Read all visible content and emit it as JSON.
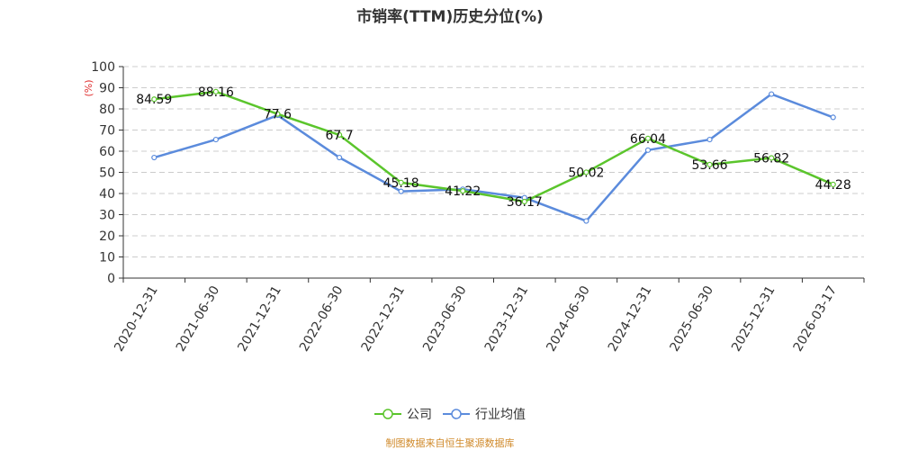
{
  "chart_data": {
    "type": "line",
    "title": "市销率(TTM)历史分位(%)",
    "ylabel": "(%)",
    "ylim": [
      0,
      100
    ],
    "yticks": [
      0,
      10,
      20,
      30,
      40,
      50,
      60,
      70,
      80,
      90,
      100
    ],
    "categories": [
      "2020-12-31",
      "2021-06-30",
      "2021-12-31",
      "2022-06-30",
      "2022-12-31",
      "2023-06-30",
      "2023-12-31",
      "2024-06-30",
      "2024-12-31",
      "2025-06-30",
      "2025-12-31",
      "2026-03-17"
    ],
    "grid": true,
    "legend_position": "bottom",
    "series": [
      {
        "name": "公司",
        "color": "#5bc52c",
        "values": [
          84.59,
          88.16,
          77.6,
          67.7,
          45.18,
          41.22,
          36.17,
          50.02,
          66.04,
          53.66,
          56.82,
          44.28
        ],
        "labels": [
          "84.59",
          "88.16",
          "77.6",
          "67.7",
          "45.18",
          "41.22",
          "36.17",
          "50.02",
          "66.04",
          "53.66",
          "56.82",
          "44.28"
        ]
      },
      {
        "name": "行业均值",
        "color": "#5b8bdc",
        "values": [
          57,
          65.5,
          77,
          57,
          41,
          42,
          38,
          27,
          60.5,
          65.5,
          87,
          76
        ]
      }
    ]
  },
  "source_text": "制图数据来自恒生聚源数据库"
}
